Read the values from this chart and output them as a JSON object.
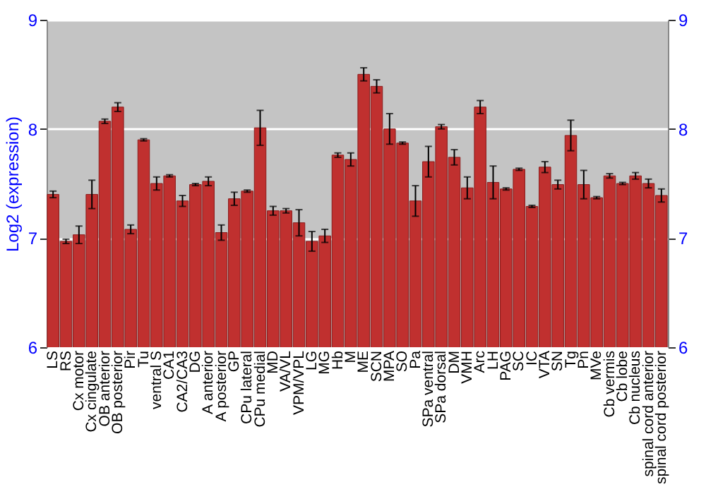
{
  "chart_data": {
    "type": "bar",
    "ylabel": "Log2 (expression)",
    "categories": [
      "LS",
      "RS",
      "Cx motor",
      "Cx cingulate",
      "OB anterior",
      "OB posterior",
      "Pir",
      "Tu",
      "ventral S",
      "CA1",
      "CA2/CA3",
      "DG",
      "A anterior",
      "A posterior",
      "GP",
      "CPu lateral",
      "CPu medial",
      "MD",
      "VA/VL",
      "VPM/VPL",
      "LG",
      "MG",
      "Hb",
      "M",
      "ME",
      "SCN",
      "MPA",
      "SO",
      "Pa",
      "SPa ventral",
      "SPa dorsal",
      "DM",
      "VMH",
      "Arc",
      "LH",
      "PAG",
      "SC",
      "IC",
      "VTA",
      "SN",
      "Tg",
      "Pn",
      "MVe",
      "Cb vermis",
      "Cb lobe",
      "Cb nucleus",
      "spinal cord anterior",
      "spinal cord posterior"
    ],
    "values": [
      7.4,
      6.97,
      7.03,
      7.4,
      8.07,
      8.2,
      7.08,
      7.9,
      7.5,
      7.57,
      7.34,
      7.49,
      7.52,
      7.05,
      7.36,
      7.43,
      8.01,
      7.25,
      7.25,
      7.14,
      6.97,
      7.02,
      7.76,
      7.72,
      8.5,
      8.39,
      8.0,
      7.87,
      7.34,
      7.7,
      8.02,
      7.74,
      7.46,
      8.2,
      7.51,
      7.45,
      7.63,
      7.29,
      7.65,
      7.49,
      7.94,
      7.49,
      7.37,
      7.57,
      7.5,
      7.57,
      7.5,
      7.39
    ],
    "errors": [
      0.03,
      0.02,
      0.08,
      0.13,
      0.02,
      0.04,
      0.04,
      0.01,
      0.06,
      0.01,
      0.05,
      0.01,
      0.04,
      0.07,
      0.06,
      0.01,
      0.16,
      0.04,
      0.02,
      0.12,
      0.09,
      0.06,
      0.02,
      0.06,
      0.06,
      0.06,
      0.14,
      0.01,
      0.14,
      0.14,
      0.02,
      0.07,
      0.1,
      0.06,
      0.15,
      0.01,
      0.01,
      0.01,
      0.05,
      0.04,
      0.14,
      0.13,
      0.01,
      0.02,
      0.01,
      0.03,
      0.04,
      0.06
    ],
    "color": "#c0302f",
    "ylim": [
      6,
      9
    ],
    "yticks": [
      6,
      7,
      8,
      9
    ],
    "y2lim": [
      6,
      9
    ],
    "y2ticks": [
      6,
      7,
      8,
      9
    ],
    "grid": "y"
  }
}
